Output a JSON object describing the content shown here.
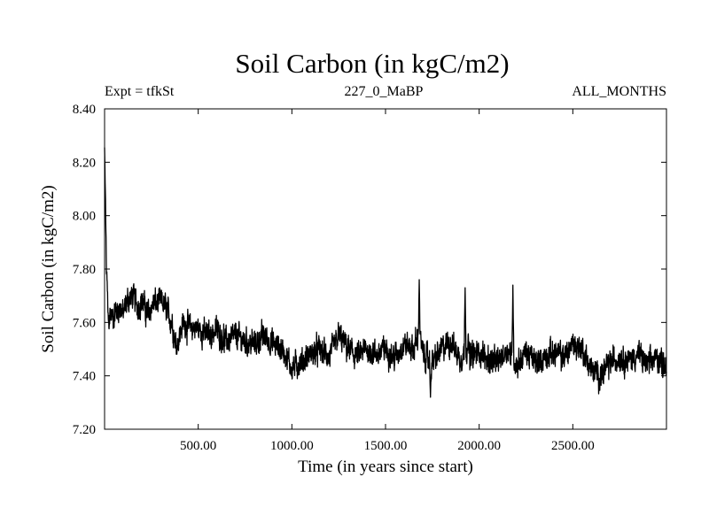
{
  "chart_data": {
    "type": "line",
    "title": "Soil Carbon (in kgC/m2)",
    "subtitle_left": "Expt = tfkSt",
    "subtitle_center": "227_0_MaBP",
    "subtitle_right": "ALL_MONTHS",
    "xlabel": "Time (in years since start)",
    "ylabel": "Soil Carbon (in kgC/m2)",
    "xlim": [
      0,
      3000
    ],
    "ylim": [
      7.2,
      8.4
    ],
    "x_ticks": [
      500,
      1000,
      1500,
      2000,
      2500
    ],
    "x_tick_labels": [
      "500.00",
      "1000.00",
      "1500.00",
      "2000.00",
      "2500.00"
    ],
    "y_ticks": [
      7.2,
      7.4,
      7.6,
      7.8,
      8.0,
      8.2,
      8.4
    ],
    "y_tick_labels": [
      "7.20",
      "7.40",
      "7.60",
      "7.80",
      "8.00",
      "8.20",
      "8.40"
    ],
    "grid": false,
    "series": [
      {
        "name": "Soil Carbon",
        "color": "#000000",
        "x": [
          0,
          5,
          10,
          20,
          30,
          40,
          60,
          80,
          100,
          120,
          150,
          180,
          200,
          230,
          260,
          300,
          330,
          360,
          380,
          400,
          420,
          450,
          500,
          550,
          600,
          650,
          700,
          750,
          800,
          850,
          900,
          950,
          1000,
          1050,
          1100,
          1150,
          1200,
          1250,
          1300,
          1350,
          1400,
          1450,
          1500,
          1550,
          1600,
          1650,
          1680,
          1700,
          1750,
          1800,
          1850,
          1900,
          1940,
          1950,
          2000,
          2050,
          2100,
          2150,
          2200,
          2250,
          2300,
          2350,
          2400,
          2450,
          2500,
          2550,
          2600,
          2650,
          2700,
          2750,
          2800,
          2850,
          2900,
          2950,
          3000
        ],
        "values": [
          8.25,
          8.05,
          7.8,
          7.6,
          7.63,
          7.62,
          7.64,
          7.66,
          7.63,
          7.68,
          7.7,
          7.66,
          7.68,
          7.63,
          7.67,
          7.68,
          7.65,
          7.6,
          7.52,
          7.55,
          7.6,
          7.58,
          7.58,
          7.55,
          7.57,
          7.53,
          7.55,
          7.53,
          7.52,
          7.55,
          7.52,
          7.5,
          7.43,
          7.45,
          7.48,
          7.5,
          7.47,
          7.55,
          7.5,
          7.47,
          7.5,
          7.48,
          7.5,
          7.47,
          7.52,
          7.5,
          7.56,
          7.48,
          7.45,
          7.5,
          7.53,
          7.46,
          7.52,
          7.47,
          7.49,
          7.46,
          7.45,
          7.5,
          7.44,
          7.49,
          7.45,
          7.47,
          7.49,
          7.47,
          7.52,
          7.5,
          7.42,
          7.4,
          7.45,
          7.47,
          7.46,
          7.48,
          7.44,
          7.47,
          7.44
        ]
      }
    ],
    "spikes": [
      {
        "x": 1680,
        "value": 7.76
      },
      {
        "x": 1740,
        "value": 7.32
      },
      {
        "x": 1925,
        "value": 7.73
      },
      {
        "x": 2180,
        "value": 7.74
      }
    ]
  }
}
